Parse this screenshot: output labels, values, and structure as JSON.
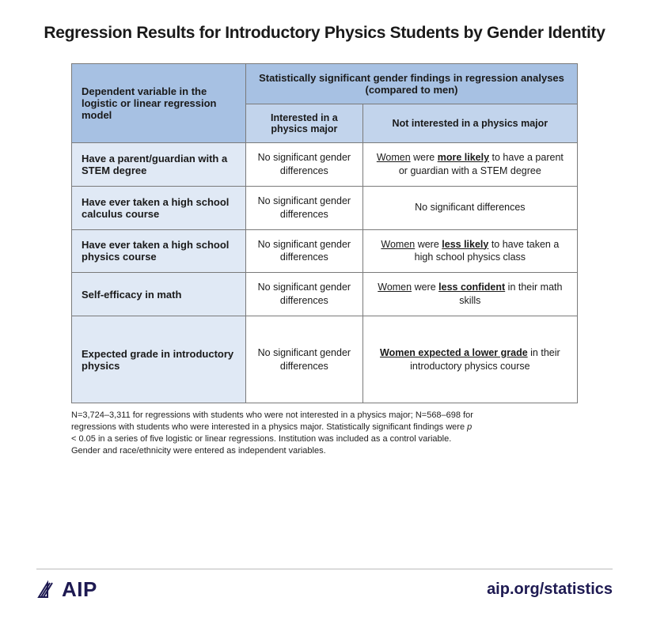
{
  "title": "Regression Results for Introductory Physics Students by Gender Identity",
  "table": {
    "header": {
      "rowLabel": "Dependent variable in the logistic or linear regression model",
      "mainHeader": "Statistically significant gender findings in regression analyses (compared to men)",
      "sub1": "Interested in a physics major",
      "sub2": "Not interested in a physics major"
    },
    "rows": [
      {
        "label": "Have a parent/guardian with a STEM degree",
        "c1": "No significant gender differences",
        "c2_html": "<span class='ul'>Women</span> were <span class='b ul'>more likely</span> to have a parent or guardian with a STEM degree"
      },
      {
        "label": "Have ever taken a high school calculus course",
        "c1": "No significant gender differences",
        "c2_html": "No significant differences"
      },
      {
        "label": "Have ever taken a high school physics course",
        "c1": "No significant gender differences",
        "c2_html": "<span class='ul'>Women</span> were <span class='b ul'>less likely</span> to have taken a high school physics class"
      },
      {
        "label": "Self-efficacy in math",
        "c1": "No significant gender differences",
        "c2_html": "<span class='ul'>Women</span> were <span class='b ul'>less confident</span> in their math skills"
      },
      {
        "label": "Expected grade in introductory physics",
        "c1": "No significant gender differences",
        "c2_html": "<span class='b ul'>Women expected a lower grade</span> in their introductory physics course",
        "tall": true
      }
    ]
  },
  "notes": {
    "line1a": "N=3,724–3,311 for regressions with students who were not interested in a physics major; N=568–698 for",
    "line2a": "regressions with students who were interested in a physics major. Statistically significant findings were ",
    "p": "p",
    "line3": "< 0.05 in a series of five logistic or linear regressions. Institution was included as a control variable.",
    "line4": "Gender and race/ethnicity were entered as independent variables."
  },
  "footer": {
    "logoText": "AIP",
    "url": "aip.org/statistics"
  },
  "colors": {
    "headerBg": "#a7c1e3",
    "subHeaderBg": "#c2d4ec",
    "rowLabelBg": "#e0e9f5",
    "border": "#7a7a7a",
    "brand": "#1e1a52"
  }
}
